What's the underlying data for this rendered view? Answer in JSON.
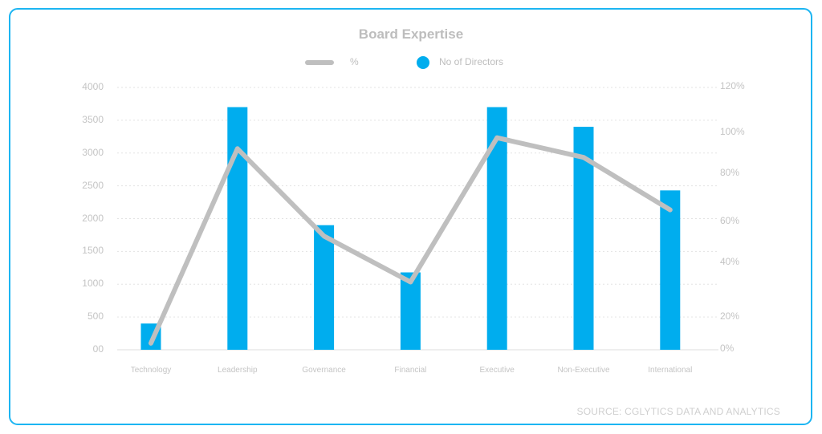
{
  "title": "Board Expertise",
  "legend": [
    {
      "name": "%",
      "marker": "line",
      "color": "#bfbfbf"
    },
    {
      "name": "No of Directors",
      "marker": "circle",
      "color": "#00adee"
    }
  ],
  "left_axis": {
    "ticks": [
      "4000",
      "3500",
      "3000",
      "2500",
      "2000",
      "1500",
      "1000",
      "500",
      "00"
    ]
  },
  "right_axis": {
    "ticks": [
      "120%",
      "100%",
      "80%",
      "60%",
      "40%",
      "20%",
      "0%"
    ]
  },
  "source": "SOURCE: CGLYTICS DATA AND ANALYTICS",
  "colors": {
    "bar": "#00adee",
    "line": "#bfbfbf",
    "border": "#1cb5f2",
    "text": "#bdbdbd"
  },
  "chart_data": {
    "type": "bar",
    "title": "Board Expertise",
    "categories": [
      "Technology",
      "Leadership",
      "Governance",
      "Financial",
      "Executive",
      "Non-Executive",
      "International"
    ],
    "series": [
      {
        "name": "No of Directors",
        "type": "bar",
        "axis": "left",
        "values": [
          400,
          3700,
          1900,
          1180,
          3700,
          3400,
          2430
        ]
      },
      {
        "name": "%",
        "type": "line",
        "axis": "right",
        "values": [
          3,
          92,
          52,
          31,
          97,
          88,
          64
        ]
      }
    ],
    "xlabel": "",
    "ylabel": "",
    "ylim": [
      0,
      4000
    ],
    "y2lim": [
      0,
      120
    ],
    "y2_unit": "%",
    "grid": true,
    "legend_position": "top"
  }
}
